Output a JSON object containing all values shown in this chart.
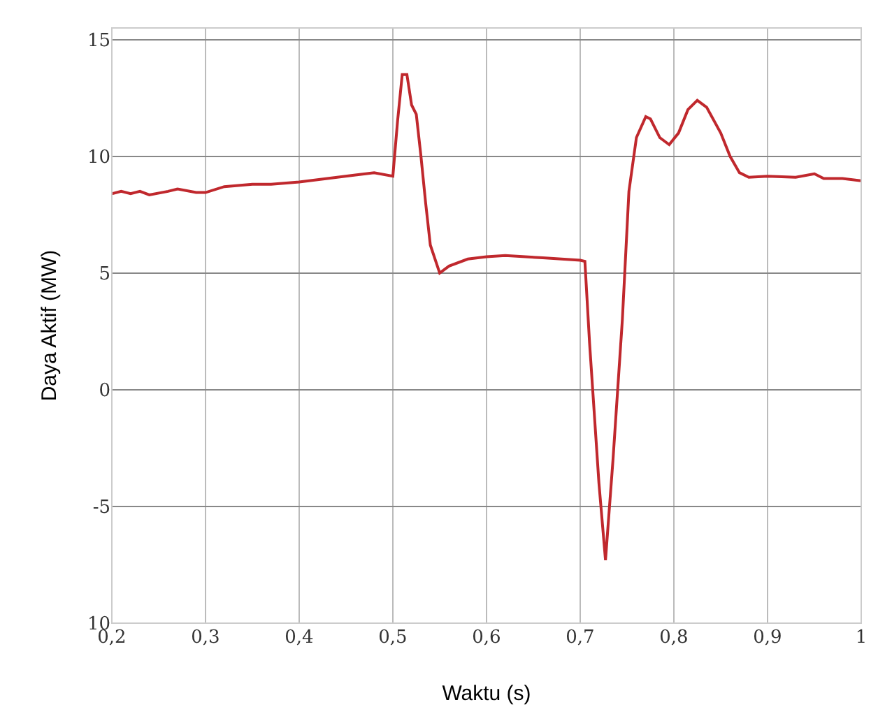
{
  "chart_data": {
    "type": "line",
    "xlabel": "Waktu (s)",
    "ylabel": "Daya Aktif (MW)",
    "x": [
      0.2,
      0.21,
      0.22,
      0.23,
      0.24,
      0.26,
      0.27,
      0.29,
      0.3,
      0.32,
      0.35,
      0.37,
      0.4,
      0.43,
      0.46,
      0.48,
      0.5,
      0.505,
      0.51,
      0.515,
      0.52,
      0.525,
      0.53,
      0.535,
      0.54,
      0.55,
      0.56,
      0.58,
      0.6,
      0.62,
      0.66,
      0.7,
      0.705,
      0.71,
      0.72,
      0.727,
      0.735,
      0.745,
      0.752,
      0.76,
      0.77,
      0.775,
      0.785,
      0.795,
      0.805,
      0.815,
      0.825,
      0.835,
      0.85,
      0.86,
      0.87,
      0.88,
      0.9,
      0.93,
      0.95,
      0.96,
      0.98,
      1.0
    ],
    "series": [
      {
        "color": "#c0282d",
        "values": [
          8.4,
          8.5,
          8.4,
          8.5,
          8.35,
          8.5,
          8.6,
          8.45,
          8.45,
          8.7,
          8.8,
          8.8,
          8.9,
          9.05,
          9.2,
          9.3,
          9.15,
          11.5,
          13.5,
          13.5,
          12.2,
          11.8,
          10,
          8,
          6.2,
          5.0,
          5.3,
          5.6,
          5.7,
          5.75,
          5.65,
          5.55,
          5.5,
          2,
          -4,
          -7.3,
          -3,
          3,
          8.5,
          10.8,
          11.7,
          11.6,
          10.8,
          10.5,
          11.0,
          12,
          12.4,
          12.1,
          11,
          10,
          9.3,
          9.1,
          9.15,
          9.1,
          9.25,
          9.05,
          9.05,
          8.95
        ]
      }
    ],
    "xlim": [
      0.2,
      1.0
    ],
    "xticks": [
      {
        "value": 0.2,
        "label": "0,2"
      },
      {
        "value": 0.3,
        "label": "0,3"
      },
      {
        "value": 0.4,
        "label": "0,4"
      },
      {
        "value": 0.5,
        "label": "0,5"
      },
      {
        "value": 0.6,
        "label": "0,6"
      },
      {
        "value": 0.7,
        "label": "0,7"
      },
      {
        "value": 0.8,
        "label": "0,8"
      },
      {
        "value": 0.9,
        "label": "0,9"
      },
      1
    ],
    "ylim": [
      -10,
      15.5
    ],
    "yticks": [
      {
        "value": -10,
        "label": "10"
      },
      -5,
      0,
      5,
      10,
      15
    ],
    "grid": true,
    "marker": "none",
    "line_style": "solid"
  }
}
